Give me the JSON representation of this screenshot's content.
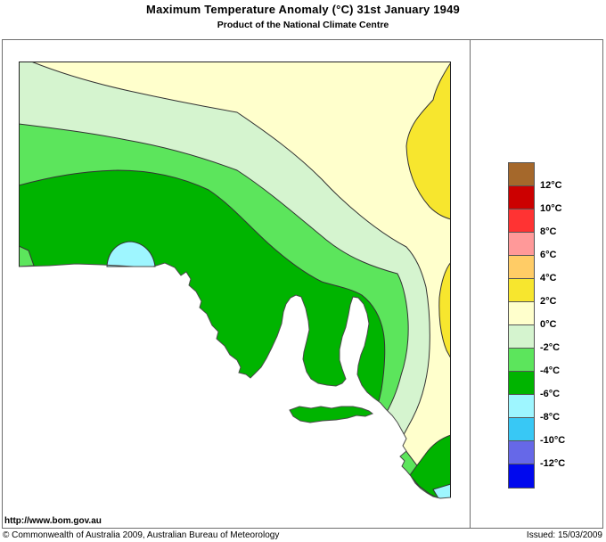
{
  "title": "Maximum Temperature Anomaly (°C)  31st January 1949",
  "subtitle": "Product of the National Climate Centre",
  "footer": {
    "url": "http://www.bom.gov.au",
    "copyright": "© Commonwealth of Australia 2009, Australian Bureau of Meteorology",
    "issued": "Issued: 15/03/2009"
  },
  "colors": {
    "cream": "#FFFFCC",
    "yellow": "#F7E62E",
    "pale_green": "#D5F4CF",
    "light_green": "#5CE55C",
    "dark_green": "#00B400",
    "light_cyan": "#9EF6FF",
    "ocean": "#FFFFFF",
    "contour_line": "#333333",
    "coastline": "#4a4a4a",
    "frame": "#222222"
  },
  "legend": {
    "labels": [
      "12°C",
      "10°C",
      "8°C",
      "6°C",
      "4°C",
      "2°C",
      "0°C",
      "-2°C",
      "-4°C",
      "-6°C",
      "-8°C",
      "-10°C",
      "-12°C"
    ],
    "colors": [
      "#A5682B",
      "#CC0000",
      "#FF3333",
      "#FF9999",
      "#FFCC66",
      "#F7E62E",
      "#FFFFCC",
      "#D5F4CF",
      "#5CE55C",
      "#00B400",
      "#9EF6FF",
      "#38C8F5",
      "#6668E8",
      "#0008EE"
    ]
  },
  "chart_data": {
    "type": "heatmap",
    "title": "Maximum Temperature Anomaly (°C)  31st January 1949",
    "subtitle": "Product of the National Climate Centre",
    "region": "South Australia",
    "units": "°C",
    "scale_boundaries_c": [
      12,
      10,
      8,
      6,
      4,
      2,
      0,
      -2,
      -4,
      -6,
      -8,
      -10,
      -12
    ],
    "legend_position": "right",
    "regions_depicted": [
      {
        "area": "far north and north-east of map",
        "anomaly_c": "0 to +2"
      },
      {
        "area": "pocket on upper eastern edge",
        "anomaly_c": "+2 to +4"
      },
      {
        "area": "narrow sliver on mid eastern edge",
        "anomaly_c": "+2 to +4"
      },
      {
        "area": "band across the north-west and centre-north",
        "anomaly_c": "-2 to 0"
      },
      {
        "area": "band across the centre, curving south-east",
        "anomaly_c": "-2 to -4"
      },
      {
        "area": "southern half including Eyre Peninsula, Yorke Peninsula and Kangaroo Island",
        "anomaly_c": "-4 to -6"
      },
      {
        "area": "small semicircular patch on the west coast",
        "anomaly_c": "-6 to -8"
      },
      {
        "area": "small patch at the south-east corner of the map",
        "anomaly_c": "-6 to -8"
      },
      {
        "area": "small coastal wedge at far western coast",
        "anomaly_c": "-2 to -4"
      }
    ]
  }
}
